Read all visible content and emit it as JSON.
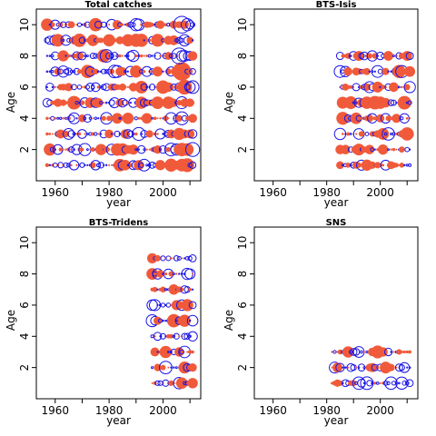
{
  "chart_data": [
    {
      "type": "scatter",
      "title": "Total catches",
      "xlabel": "year",
      "ylabel": "Age",
      "xlim": [
        1953,
        2014
      ],
      "ylim": [
        0,
        11
      ],
      "xticks": [
        1960,
        1980,
        2000
      ],
      "yticks": [
        2,
        4,
        6,
        8,
        10
      ],
      "x_start": 1957,
      "x_end": 2011,
      "ages": [
        1,
        2,
        3,
        4,
        5,
        6,
        7,
        8,
        9,
        10
      ],
      "encoding": "bubble size = magnitude of residual; filled red = positive, open blue = negative"
    },
    {
      "type": "scatter",
      "title": "BTS-Isis",
      "xlabel": "year",
      "ylabel": "Age",
      "xlim": [
        1953,
        2014
      ],
      "ylim": [
        0,
        11
      ],
      "xticks": [
        1960,
        1980,
        2000
      ],
      "yticks": [
        2,
        4,
        6,
        8,
        10
      ],
      "x_start": 1985,
      "x_end": 2011,
      "ages": [
        1,
        2,
        3,
        4,
        5,
        6,
        7,
        8
      ],
      "encoding": "bubble size = magnitude of residual; filled red = positive, open blue = negative"
    },
    {
      "type": "scatter",
      "title": "BTS-Tridens",
      "xlabel": "year",
      "ylabel": "Age",
      "xlim": [
        1953,
        2014
      ],
      "ylim": [
        0,
        11
      ],
      "xticks": [
        1960,
        1980,
        2000
      ],
      "yticks": [
        2,
        4,
        6,
        8,
        10
      ],
      "x_start": 1996,
      "x_end": 2011,
      "ages": [
        1,
        2,
        3,
        4,
        5,
        6,
        7,
        8,
        9
      ],
      "encoding": "bubble size = magnitude of residual; filled red = positive, open blue = negative"
    },
    {
      "type": "scatter",
      "title": "SNS",
      "xlabel": "year",
      "ylabel": "Age",
      "xlim": [
        1953,
        2014
      ],
      "ylim": [
        0,
        11
      ],
      "xticks": [
        1960,
        1980,
        2000
      ],
      "yticks": [
        2,
        4,
        6,
        8,
        10
      ],
      "x_start": 1982,
      "x_end": 2011,
      "ages": [
        1,
        2,
        3
      ],
      "encoding": "bubble size = magnitude of residual; filled red = positive, open blue = negative"
    }
  ],
  "colors": {
    "positive": "#f05a3a",
    "negative": "#1a14e6",
    "axis": "#000000"
  }
}
